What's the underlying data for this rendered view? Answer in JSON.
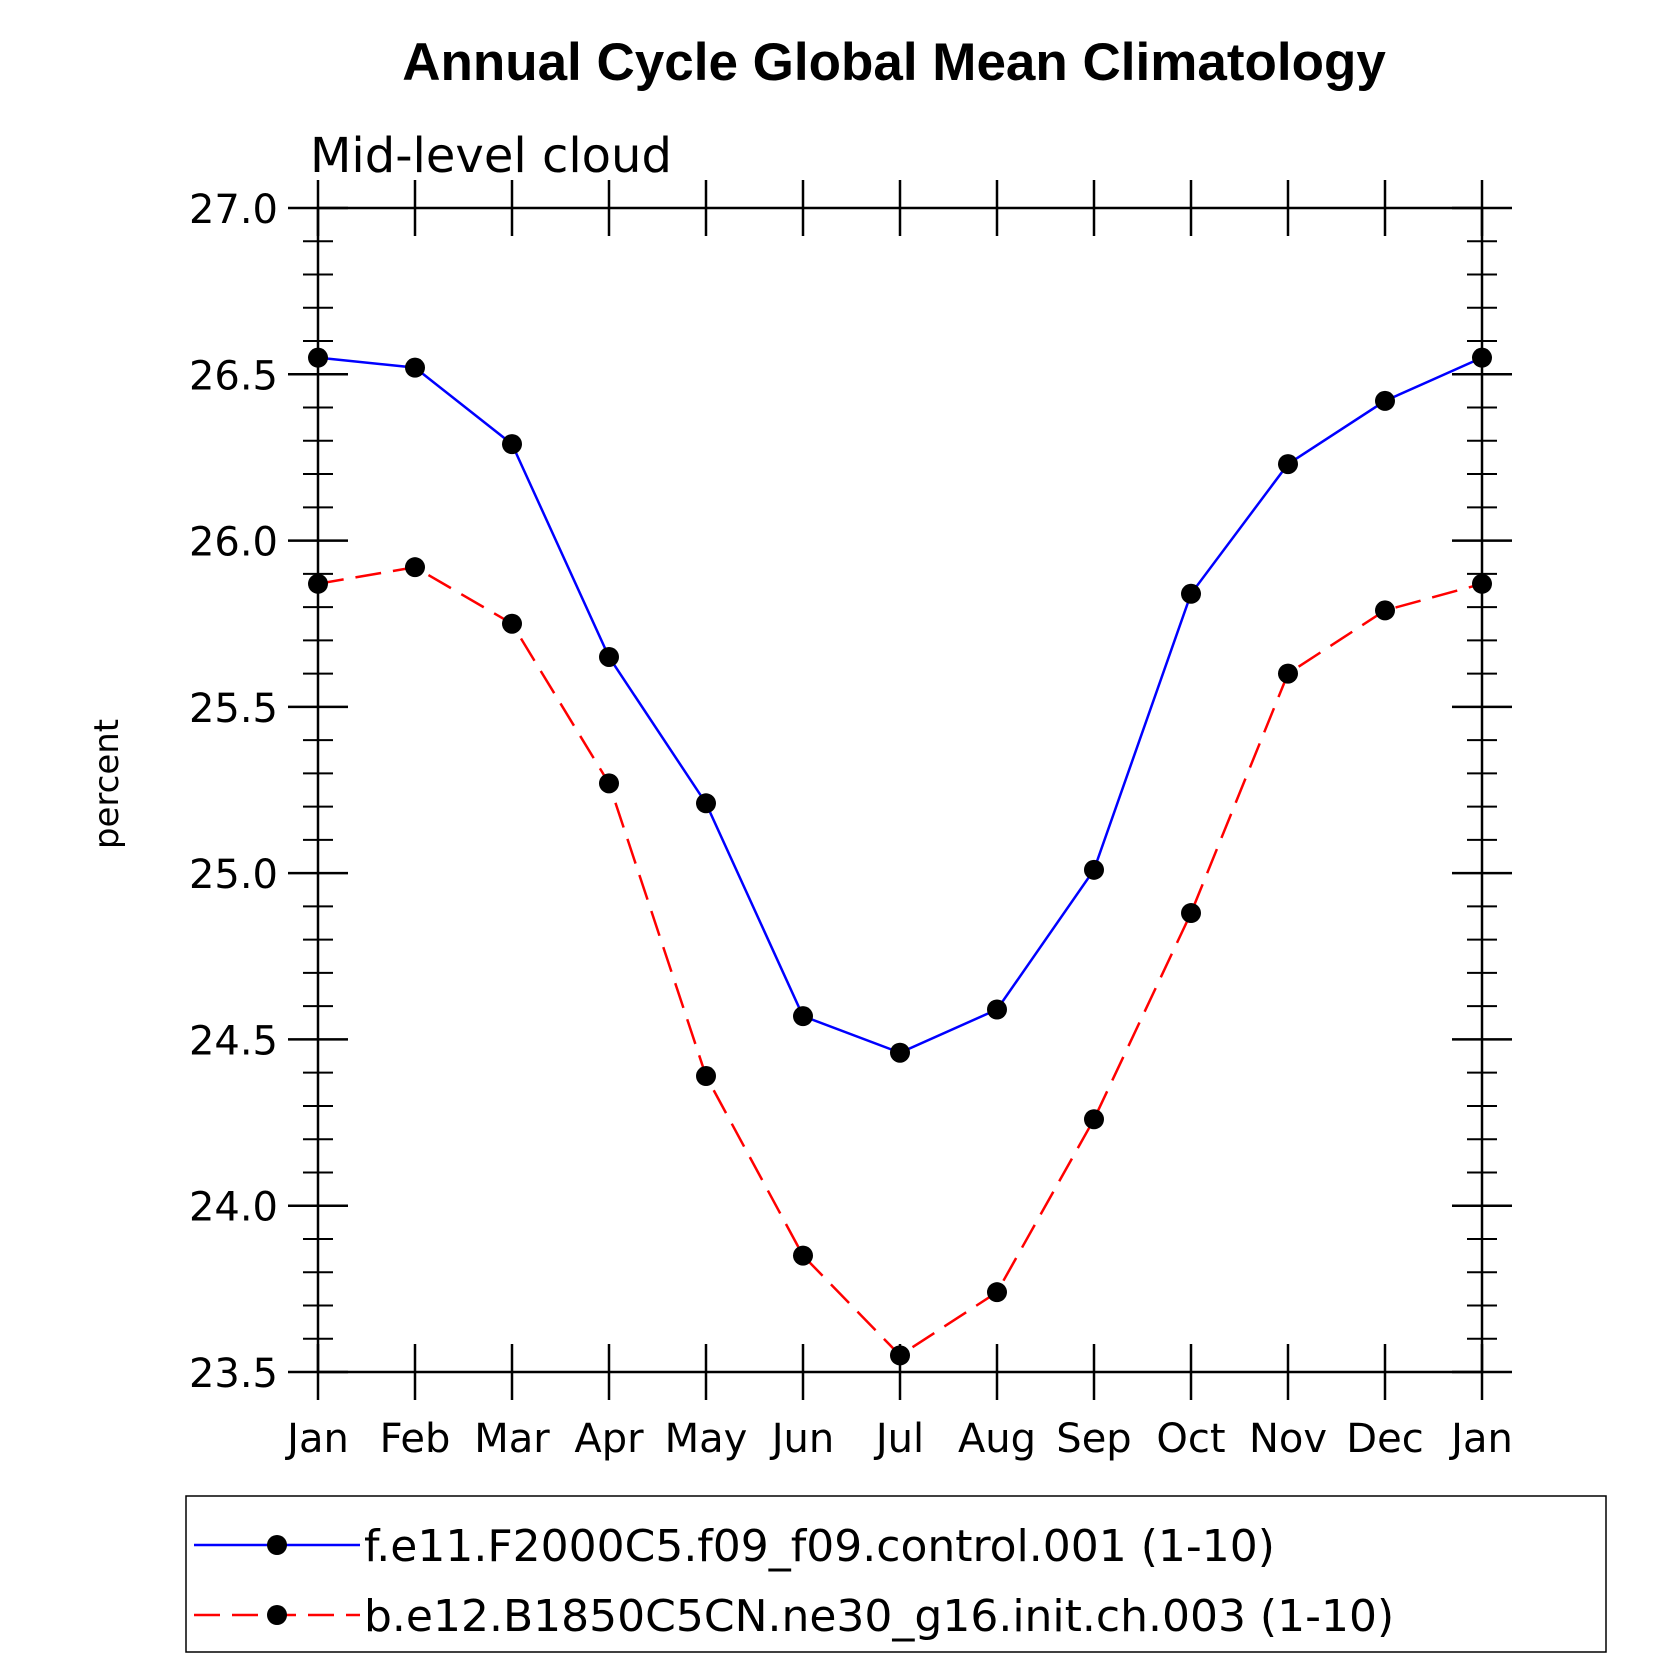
{
  "chart_data": {
    "type": "line",
    "title": "Annual Cycle Global Mean Climatology",
    "subtitle": "Mid-level cloud",
    "xlabel": "",
    "ylabel": "percent",
    "categories": [
      "Jan",
      "Feb",
      "Mar",
      "Apr",
      "May",
      "Jun",
      "Jul",
      "Aug",
      "Sep",
      "Oct",
      "Nov",
      "Dec",
      "Jan"
    ],
    "ylim": [
      23.5,
      27.0
    ],
    "yticks": [
      "23.5",
      "24.0",
      "24.5",
      "25.0",
      "25.5",
      "26.0",
      "26.5",
      "27.0"
    ],
    "grid": false,
    "legend_position": "bottom",
    "series": [
      {
        "name": "f.e11.F2000C5.f09_f09.control.001 (1-10)",
        "color": "#0000ff",
        "line_style": "solid",
        "marker": "filled-circle",
        "values": [
          26.55,
          26.52,
          26.29,
          25.65,
          25.21,
          24.57,
          24.46,
          24.59,
          25.01,
          25.84,
          26.23,
          26.42,
          26.55
        ]
      },
      {
        "name": "b.e12.B1850C5CN.ne30_g16.init.ch.003 (1-10)",
        "color": "#ff0000",
        "line_style": "dashed",
        "marker": "filled-circle",
        "values": [
          25.87,
          25.92,
          25.75,
          25.27,
          24.39,
          23.85,
          23.55,
          23.74,
          24.26,
          24.88,
          25.6,
          25.79,
          25.87
        ]
      }
    ]
  }
}
